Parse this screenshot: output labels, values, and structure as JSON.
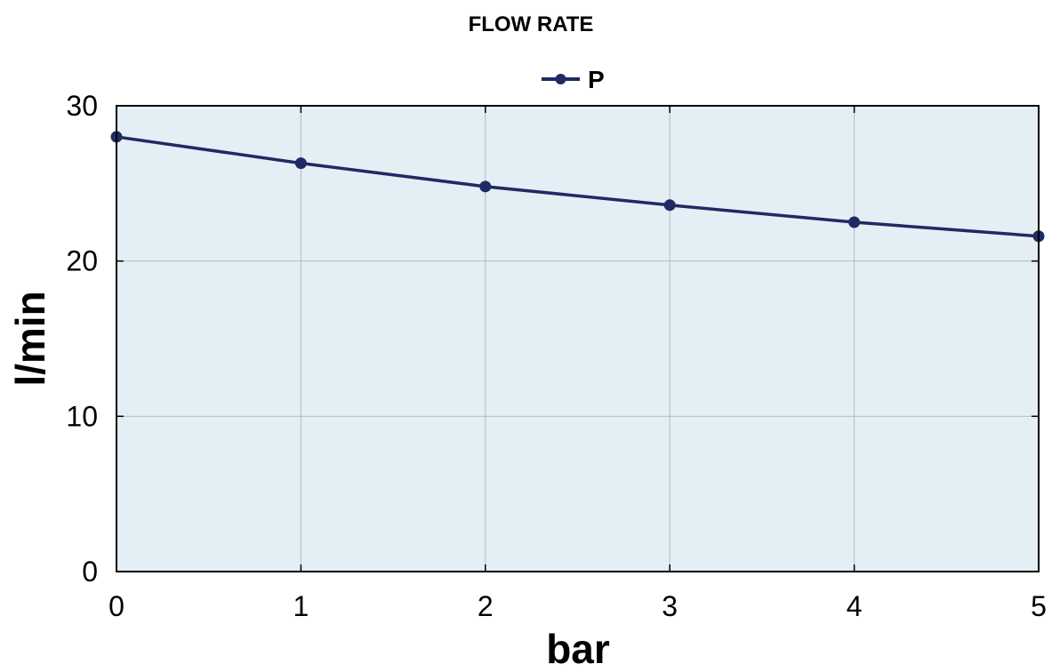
{
  "chart_data": {
    "type": "line",
    "title": "FLOW RATE",
    "xlabel": "bar",
    "ylabel": "l/min",
    "x": [
      0,
      1,
      2,
      3,
      4,
      5
    ],
    "xlim": [
      0,
      5
    ],
    "ylim": [
      0,
      30
    ],
    "xticks": [
      "0",
      "1",
      "2",
      "3",
      "4",
      "5"
    ],
    "yticks": [
      "0",
      "10",
      "20",
      "30"
    ],
    "grid": true,
    "legend_position": "top-center",
    "plot_background": "#e4eef5",
    "series": [
      {
        "name": "P",
        "values": [
          28.0,
          26.3,
          24.8,
          23.6,
          22.5,
          21.6
        ],
        "color": "#1f2a63",
        "marker": "circle"
      }
    ]
  }
}
